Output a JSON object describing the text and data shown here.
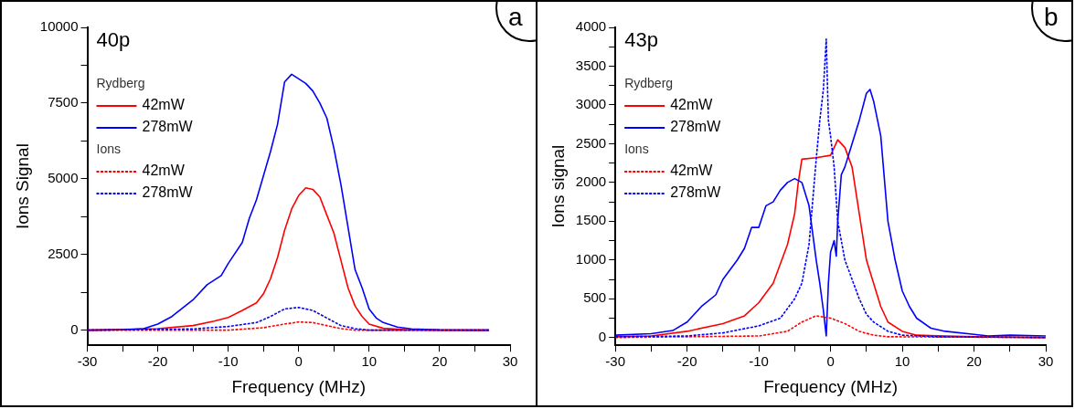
{
  "chart_data": [
    {
      "type": "line",
      "xlabel": "Frequency (MHz)",
      "ylabel": "Ions Signal",
      "annotations": [
        "40p",
        "a",
        "Rydberg",
        "Ions"
      ],
      "legend": "top left",
      "marker": "none",
      "grid": false,
      "xlim": [
        -30,
        30
      ],
      "xticks": [
        -30,
        {
          "value": -25,
          "label": null
        },
        -20,
        {
          "value": -15,
          "label": null
        },
        -10,
        {
          "value": -5,
          "label": null
        },
        0,
        {
          "value": 5,
          "label": null
        },
        10,
        {
          "value": 15,
          "label": null
        },
        20,
        {
          "value": 25,
          "label": null
        },
        30
      ],
      "ylim": [
        -500,
        10000
      ],
      "yticks": [
        0,
        {
          "value": 1250,
          "label": null
        },
        2500,
        {
          "value": 3750,
          "label": null
        },
        5000,
        {
          "value": 6250,
          "label": null
        },
        7500,
        {
          "value": 8750,
          "label": null
        },
        10000
      ],
      "series": [
        {
          "name": "42mW",
          "color": "#ff0000",
          "line_style": "solid",
          "x": [
            -30,
            -20,
            -15,
            -12,
            -10,
            -8,
            -6,
            -5,
            -4,
            -3,
            -2,
            -1,
            0,
            1,
            2,
            3,
            4,
            5,
            6,
            7,
            8,
            9,
            10,
            12,
            15,
            20,
            27
          ],
          "values": [
            0,
            50,
            150,
            300,
            420,
            650,
            900,
            1200,
            1700,
            2400,
            3300,
            4000,
            4450,
            4700,
            4650,
            4400,
            3800,
            3200,
            2300,
            1400,
            800,
            450,
            200,
            60,
            20,
            0,
            0
          ]
        },
        {
          "name": "278mW",
          "color": "#0000ff",
          "line_style": "solid",
          "x": [
            -30,
            -25,
            -22,
            -20,
            -18,
            -15,
            -13,
            -11,
            -10,
            -8,
            -7,
            -6,
            -5,
            -4,
            -3,
            -2,
            -1,
            0,
            1,
            2,
            3,
            4,
            5,
            6,
            7,
            8,
            9,
            10,
            11,
            12,
            14,
            16,
            20,
            27
          ],
          "values": [
            0,
            10,
            50,
            200,
            450,
            1000,
            1500,
            1800,
            2200,
            2900,
            3700,
            4300,
            5100,
            5900,
            6800,
            8200,
            8450,
            8300,
            8150,
            7900,
            7500,
            7000,
            6000,
            4800,
            3400,
            2000,
            1400,
            700,
            400,
            250,
            100,
            40,
            10,
            0
          ]
        },
        {
          "name": "42mW",
          "color": "#ff0000",
          "line_style": "dashed",
          "x": [
            -30,
            -10,
            -5,
            -2,
            0,
            2,
            4,
            6,
            8,
            27
          ],
          "values": [
            0,
            0,
            80,
            200,
            270,
            250,
            150,
            50,
            0,
            0
          ]
        },
        {
          "name": "278mW",
          "color": "#0000ff",
          "line_style": "dashed",
          "x": [
            -30,
            -15,
            -10,
            -6,
            -4,
            -2,
            0,
            2,
            4,
            6,
            8,
            10,
            27
          ],
          "values": [
            0,
            40,
            120,
            250,
            450,
            700,
            750,
            650,
            400,
            150,
            50,
            0,
            0
          ]
        }
      ]
    },
    {
      "type": "line",
      "xlabel": "Frequency (MHz)",
      "ylabel": "Ions signal",
      "annotations": [
        "43p",
        "b",
        "Rydberg",
        "Ions"
      ],
      "legend": "top left",
      "marker": "none",
      "grid": false,
      "xlim": [
        -30,
        30
      ],
      "xticks": [
        -30,
        {
          "value": -25,
          "label": null
        },
        -20,
        {
          "value": -15,
          "label": null
        },
        -10,
        {
          "value": -5,
          "label": null
        },
        0,
        {
          "value": 5,
          "label": null
        },
        10,
        {
          "value": 15,
          "label": null
        },
        20,
        {
          "value": 25,
          "label": null
        },
        30
      ],
      "ylim": [
        -100,
        4000
      ],
      "yticks": [
        0,
        {
          "value": 250,
          "label": null
        },
        500,
        {
          "value": 750,
          "label": null
        },
        1000,
        {
          "value": 1250,
          "label": null
        },
        1500,
        {
          "value": 1750,
          "label": null
        },
        2000,
        {
          "value": 2250,
          "label": null
        },
        2500,
        {
          "value": 2750,
          "label": null
        },
        3000,
        {
          "value": 3250,
          "label": null
        },
        3500,
        {
          "value": 3750,
          "label": null
        },
        4000
      ],
      "series": [
        {
          "name": "42mW",
          "color": "#ff0000",
          "line_style": "solid",
          "x": [
            -30,
            -25,
            -20,
            -15,
            -12,
            -10,
            -8,
            -6,
            -5,
            -4.5,
            -4,
            -2,
            0,
            1,
            2,
            3,
            4,
            5,
            6,
            7,
            8,
            10,
            12,
            20,
            30
          ],
          "values": [
            10,
            20,
            80,
            180,
            280,
            450,
            700,
            1200,
            1600,
            2000,
            2300,
            2320,
            2350,
            2550,
            2450,
            2200,
            1600,
            1000,
            700,
            400,
            200,
            80,
            30,
            10,
            0
          ]
        },
        {
          "name": "278mW",
          "color": "#0000ff",
          "line_style": "solid",
          "x": [
            -30,
            -25,
            -22,
            -20,
            -18,
            -16,
            -15,
            -13,
            -12,
            -11,
            -10,
            -9,
            -8,
            -7,
            -6,
            -5,
            -4,
            -3,
            -2,
            -1.5,
            -1,
            -0.6,
            -0.3,
            0,
            0.5,
            0.8,
            1,
            1.5,
            2,
            3,
            4,
            5,
            5.5,
            6,
            7,
            8,
            9,
            10,
            11,
            12,
            14,
            16,
            20,
            22,
            25,
            30
          ],
          "values": [
            30,
            50,
            90,
            200,
            400,
            550,
            750,
            1000,
            1150,
            1420,
            1420,
            1700,
            1750,
            1900,
            2000,
            2050,
            2000,
            1700,
            1000,
            700,
            350,
            20,
            700,
            1100,
            1250,
            1050,
            1500,
            2100,
            2200,
            2500,
            2800,
            3150,
            3200,
            3050,
            2600,
            1500,
            1000,
            600,
            400,
            250,
            120,
            80,
            40,
            20,
            30,
            20
          ]
        },
        {
          "name": "42mW",
          "color": "#ff0000",
          "line_style": "dashed",
          "x": [
            -30,
            -10,
            -6,
            -4,
            -2,
            0,
            2,
            4,
            6,
            8,
            30
          ],
          "values": [
            0,
            20,
            80,
            200,
            280,
            250,
            180,
            80,
            30,
            10,
            0
          ]
        },
        {
          "name": "278mW",
          "color": "#0000ff",
          "line_style": "dashed",
          "x": [
            -30,
            -20,
            -15,
            -10,
            -7,
            -5,
            -4,
            -3,
            -2,
            -1.5,
            -1,
            -0.6,
            -0.3,
            0,
            0.5,
            1,
            2,
            3,
            4,
            5,
            6,
            8,
            10,
            15,
            30
          ],
          "values": [
            10,
            20,
            60,
            150,
            250,
            500,
            700,
            1200,
            2300,
            2800,
            3200,
            3850,
            2800,
            2600,
            2200,
            1500,
            1000,
            750,
            500,
            300,
            200,
            80,
            30,
            10,
            0
          ]
        }
      ]
    }
  ]
}
